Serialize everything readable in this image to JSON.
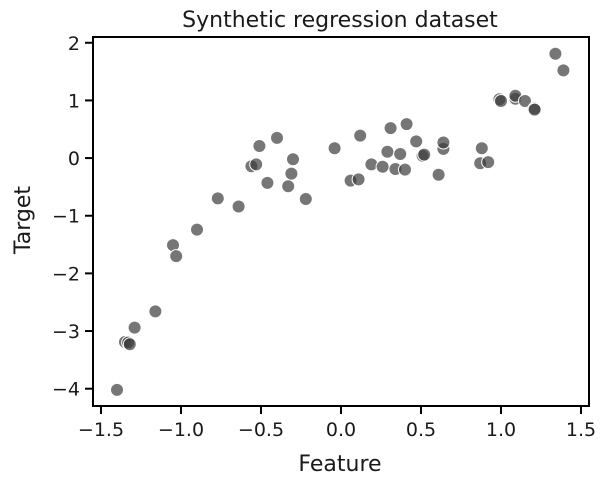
{
  "chart_data": {
    "type": "scatter",
    "title": "Synthetic regression dataset",
    "xlabel": "Feature",
    "ylabel": "Target",
    "xlim": [
      -1.55,
      1.55
    ],
    "ylim": [
      -4.3,
      2.1
    ],
    "x_ticks": [
      -1.5,
      -1.0,
      -0.5,
      0.0,
      0.5,
      1.0,
      1.5
    ],
    "x_tick_labels": [
      "−1.5",
      "−1.0",
      "−0.5",
      "0.0",
      "0.5",
      "1.0",
      "1.5"
    ],
    "y_ticks": [
      2,
      1,
      0,
      -1,
      -2,
      -3,
      -4
    ],
    "y_tick_labels": [
      "2",
      "1",
      "0",
      "−1",
      "−2",
      "−3",
      "−4"
    ],
    "grid": false,
    "point_color": "#3c3c3c",
    "series": [
      {
        "points": [
          [
            -1.4,
            -4.02
          ],
          [
            -1.35,
            -3.19
          ],
          [
            -1.33,
            -3.2
          ],
          [
            -1.32,
            -3.23
          ],
          [
            -1.29,
            -2.94
          ],
          [
            -1.16,
            -2.66
          ],
          [
            -1.05,
            -1.51
          ],
          [
            -1.03,
            -1.7
          ],
          [
            -0.9,
            -1.24
          ],
          [
            -0.77,
            -0.7
          ],
          [
            -0.64,
            -0.84
          ],
          [
            -0.56,
            -0.14
          ],
          [
            -0.53,
            -0.11
          ],
          [
            -0.51,
            0.21
          ],
          [
            -0.46,
            -0.43
          ],
          [
            -0.4,
            0.35
          ],
          [
            -0.33,
            -0.49
          ],
          [
            -0.31,
            -0.27
          ],
          [
            -0.3,
            -0.02
          ],
          [
            -0.22,
            -0.71
          ],
          [
            -0.04,
            0.17
          ],
          [
            0.06,
            -0.39
          ],
          [
            0.11,
            -0.37
          ],
          [
            0.12,
            0.39
          ],
          [
            0.19,
            -0.11
          ],
          [
            0.26,
            -0.15
          ],
          [
            0.29,
            0.11
          ],
          [
            0.31,
            0.52
          ],
          [
            0.34,
            -0.19
          ],
          [
            0.37,
            0.07
          ],
          [
            0.4,
            -0.2
          ],
          [
            0.41,
            0.59
          ],
          [
            0.47,
            0.29
          ],
          [
            0.51,
            0.04
          ],
          [
            0.52,
            0.06
          ],
          [
            0.61,
            -0.29
          ],
          [
            0.64,
            0.16
          ],
          [
            0.64,
            0.27
          ],
          [
            0.87,
            -0.09
          ],
          [
            0.88,
            0.17
          ],
          [
            0.92,
            -0.07
          ],
          [
            0.99,
            1.02
          ],
          [
            1.0,
            0.99
          ],
          [
            1.09,
            1.03
          ],
          [
            1.09,
            1.08
          ],
          [
            1.15,
            0.99
          ],
          [
            1.21,
            0.86
          ],
          [
            1.21,
            0.84
          ],
          [
            1.34,
            1.81
          ],
          [
            1.39,
            1.52
          ]
        ]
      }
    ]
  }
}
